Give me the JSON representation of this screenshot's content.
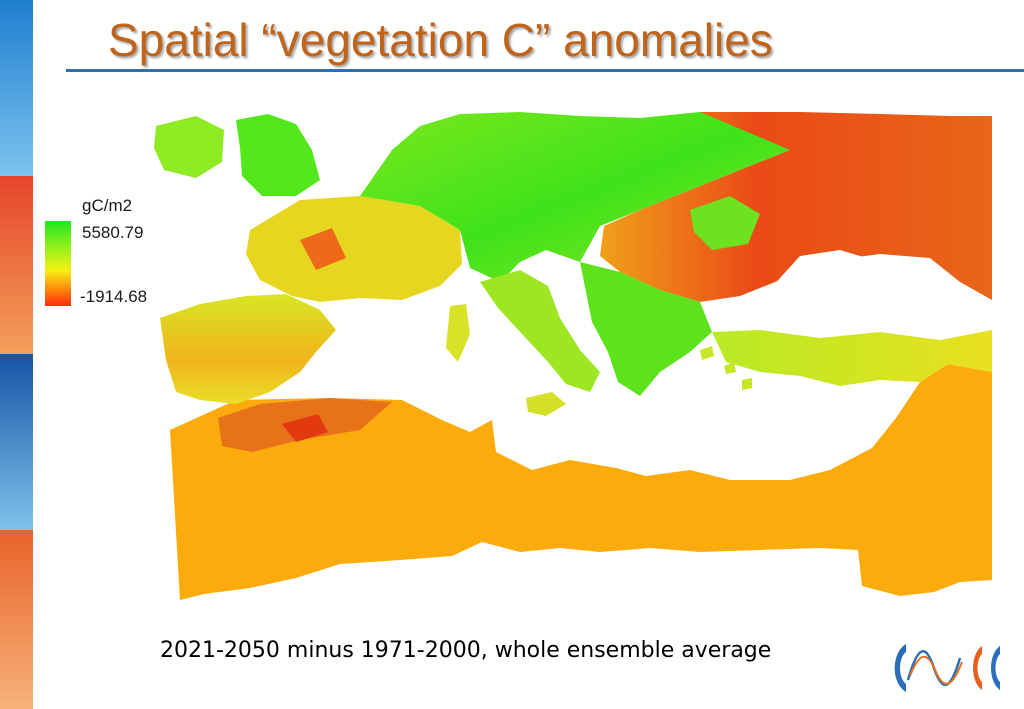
{
  "slide": {
    "title": "Spatial “vegetation C” anomalies",
    "caption": "2021-2050 minus 1971-2000, whole ensemble average"
  },
  "legend": {
    "unit": "gC/m2",
    "max": "5580.79",
    "min": "-1914.68",
    "colors": [
      "#22e61f",
      "#8ff01a",
      "#f6f014",
      "#ff8a0d",
      "#ff2a08"
    ]
  },
  "map": {
    "region": "Europe and Mediterranean basin",
    "fill_colors": {
      "north_europe": "#4ee81c",
      "eastern_europe": "#f2561a",
      "iberia_turkey": "#d9ea24",
      "north_africa_desert": "#fbab0b",
      "sea": "#ffffff"
    }
  },
  "sidebar": {
    "colors": [
      "#2d8fd4",
      "#e8601e",
      "#1d6ab2",
      "#e8702a"
    ]
  }
}
